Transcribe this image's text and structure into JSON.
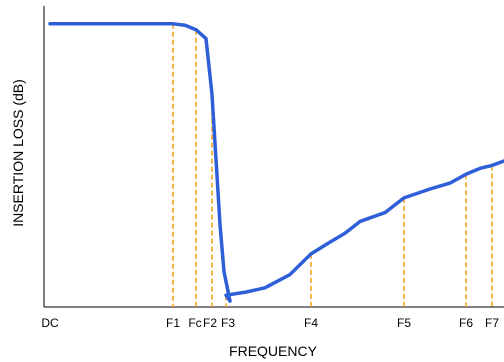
{
  "chart_data": {
    "type": "line",
    "title": "",
    "xlabel": "FREQUENCY",
    "ylabel": "INSERTION LOSS (dB)",
    "x_categories": [
      "DC",
      "F1",
      "Fc",
      "F2",
      "F3",
      "F4",
      "F5",
      "F6",
      "F7"
    ],
    "grid": false,
    "legend": "none",
    "series": [
      {
        "color": "#2f5fd8",
        "points": [
          {
            "x": "DC",
            "y": 96
          },
          {
            "x": "F1",
            "y": 96
          },
          {
            "x": "Fc",
            "y": 94
          },
          {
            "x": "F2",
            "y": 72
          },
          {
            "x": "F3",
            "y": 4
          },
          {
            "x": "F4",
            "y": 18
          },
          {
            "x": "F5",
            "y": 37
          },
          {
            "x": "F6",
            "y": 45
          },
          {
            "x": "F7",
            "y": 48
          }
        ]
      }
    ],
    "markers": [
      "F1",
      "Fc",
      "F2",
      "F3",
      "F4",
      "F5",
      "F6",
      "F7"
    ],
    "marker_color": "#f5a623"
  }
}
